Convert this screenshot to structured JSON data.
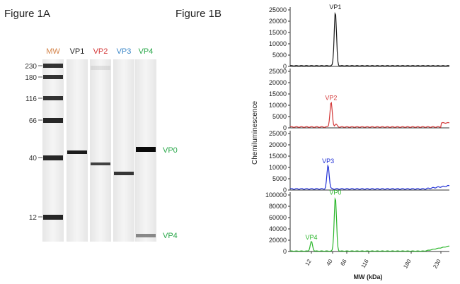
{
  "figure_a": {
    "title": "Figure 1A",
    "lanes": [
      {
        "label": "MW",
        "color": "#d4844a"
      },
      {
        "label": "VP1",
        "color": "#222222"
      },
      {
        "label": "VP2",
        "color": "#d43a3a"
      },
      {
        "label": "VP3",
        "color": "#3a86c8"
      },
      {
        "label": "VP4",
        "color": "#2aa84a"
      }
    ],
    "mw_markers": [
      "230",
      "180",
      "116",
      "66",
      "40",
      "12"
    ],
    "band_labels": [
      {
        "text": "VP0",
        "color": "#2aa84a"
      },
      {
        "text": "VP4",
        "color": "#2aa84a"
      }
    ]
  },
  "figure_b": {
    "title": "Figure 1B",
    "ylabel": "Chemiluminescence",
    "xlabel": "MW (kDa)",
    "x_ticks": [
      "12",
      "40",
      "66",
      "116",
      "180",
      "230"
    ],
    "panels": [
      {
        "name": "VP1",
        "color": "#1a1a1a",
        "y_ticks": [
          "0",
          "5000",
          "10000",
          "15000",
          "20000",
          "25000"
        ],
        "peak_labels": [
          {
            "text": "VP1"
          }
        ]
      },
      {
        "name": "VP2",
        "color": "#d43a3a",
        "y_ticks": [
          "0",
          "5000",
          "10000",
          "15000",
          "20000",
          "25000"
        ],
        "peak_labels": [
          {
            "text": "VP2"
          }
        ]
      },
      {
        "name": "VP3",
        "color": "#1f2fd6",
        "y_ticks": [
          "0",
          "5000",
          "10000",
          "15000",
          "20000",
          "25000"
        ],
        "peak_labels": [
          {
            "text": "VP3"
          }
        ]
      },
      {
        "name": "VP0/VP4",
        "color": "#2ab62a",
        "y_ticks": [
          "0",
          "20000",
          "40000",
          "60000",
          "80000",
          "100000"
        ],
        "peak_labels": [
          {
            "text": "VP4"
          },
          {
            "text": "VP0"
          }
        ]
      }
    ]
  },
  "chart_data": [
    {
      "type": "line",
      "title": "VP1",
      "xlabel": "MW (kDa)",
      "ylabel": "Chemiluminescence",
      "x_ticks": [
        "12",
        "40",
        "66",
        "116",
        "180",
        "230"
      ],
      "ylim": [
        0,
        25000
      ],
      "series": [
        {
          "name": "VP1",
          "color": "#1a1a1a",
          "baseline": 300,
          "peaks": [
            {
              "x_kda": 45,
              "height": 24000
            }
          ]
        }
      ]
    },
    {
      "type": "line",
      "title": "VP2",
      "xlabel": "MW (kDa)",
      "ylabel": "Chemiluminescence",
      "x_ticks": [
        "12",
        "40",
        "66",
        "116",
        "180",
        "230"
      ],
      "ylim": [
        0,
        25000
      ],
      "series": [
        {
          "name": "VP2",
          "color": "#d43a3a",
          "baseline": 400,
          "peaks": [
            {
              "x_kda": 38,
              "height": 11000
            },
            {
              "x_kda": 46,
              "height": 1200
            }
          ]
        }
      ]
    },
    {
      "type": "line",
      "title": "VP3",
      "xlabel": "MW (kDa)",
      "ylabel": "Chemiluminescence",
      "x_ticks": [
        "12",
        "40",
        "66",
        "116",
        "180",
        "230"
      ],
      "ylim": [
        0,
        25000
      ],
      "series": [
        {
          "name": "VP3",
          "color": "#1f2fd6",
          "baseline": 500,
          "peaks": [
            {
              "x_kda": 34,
              "height": 10500
            }
          ]
        }
      ]
    },
    {
      "type": "line",
      "title": "VP0/VP4",
      "xlabel": "MW (kDa)",
      "ylabel": "Chemiluminescence",
      "x_ticks": [
        "12",
        "40",
        "66",
        "116",
        "180",
        "230"
      ],
      "ylim": [
        0,
        100000
      ],
      "series": [
        {
          "name": "VP0/VP4",
          "color": "#2ab62a",
          "baseline": 800,
          "peaks": [
            {
              "x_kda": 12,
              "height": 17000
            },
            {
              "x_kda": 45,
              "height": 96000
            }
          ]
        }
      ]
    }
  ]
}
